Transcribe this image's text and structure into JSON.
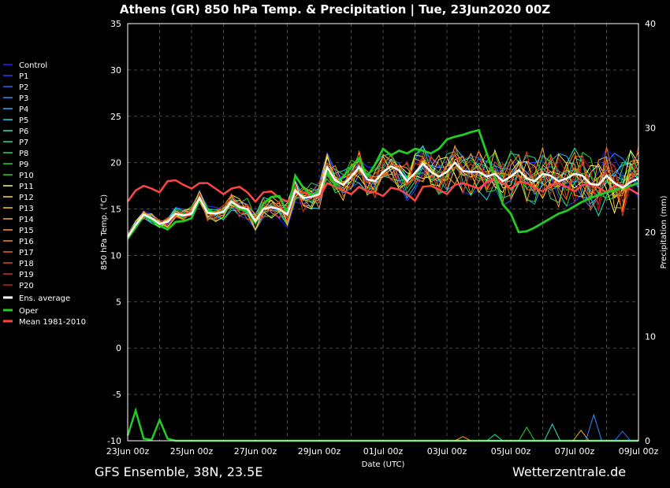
{
  "title": "Athens  (GR)  850 hPa Temp. & Precipitation | Tue, 23Jun2020 00Z",
  "footer": {
    "left": "GFS Ensemble, 38N, 23.5E",
    "right": "Wetterzentrale.de"
  },
  "chart_data": {
    "type": "line",
    "title": "Athens  (GR)  850 hPa Temp. & Precipitation | Tue, 23Jun2020 00Z",
    "xlabel": "Date (UTC)",
    "ylabel": "850 hPa Temp. (°C)",
    "y2label": "Precipitation (mm)",
    "x_ticks": [
      "23Jun 00z",
      "25Jun 00z",
      "27Jun 00z",
      "29Jun 00z",
      "01Jul 00z",
      "03Jul 00z",
      "05Jul 00z",
      "07Jul 00z",
      "09Jul 00z"
    ],
    "y_ticks": [
      "35",
      "30",
      "25",
      "20",
      "15",
      "10",
      "5",
      "0",
      "-5",
      "-10"
    ],
    "y2_ticks": [
      "40",
      "30",
      "20",
      "10",
      "0"
    ],
    "ylim": [
      -10,
      35
    ],
    "y2lim": [
      0,
      40
    ],
    "grid": true,
    "legend_position": "left",
    "legend": [
      {
        "name": "Control",
        "color": "#2222ff"
      },
      {
        "name": "P1",
        "color": "#2a3cff"
      },
      {
        "name": "P2",
        "color": "#2a66ff"
      },
      {
        "name": "P3",
        "color": "#2a90ff"
      },
      {
        "name": "P4",
        "color": "#22b4ff"
      },
      {
        "name": "P5",
        "color": "#22d4f0"
      },
      {
        "name": "P6",
        "color": "#22e8c0"
      },
      {
        "name": "P7",
        "color": "#22e090"
      },
      {
        "name": "P8",
        "color": "#22dc60"
      },
      {
        "name": "P9",
        "color": "#22d830"
      },
      {
        "name": "P10",
        "color": "#33d022"
      },
      {
        "name": "P11",
        "color": "#ffff66"
      },
      {
        "name": "P12",
        "color": "#ffdd33"
      },
      {
        "name": "P13",
        "color": "#ffc822"
      },
      {
        "name": "P14",
        "color": "#ffb022"
      },
      {
        "name": "P15",
        "color": "#ff9a22"
      },
      {
        "name": "P16",
        "color": "#ff8a22"
      },
      {
        "name": "P17",
        "color": "#ee6a22"
      },
      {
        "name": "P18",
        "color": "#dd4a22"
      },
      {
        "name": "P19",
        "color": "#cc3322"
      },
      {
        "name": "P20",
        "color": "#bb2222"
      },
      {
        "name": "Ens. average",
        "color": "#ffffff"
      },
      {
        "name": "Oper",
        "color": "#22cc22"
      },
      {
        "name": "Mean 1981-2010",
        "color": "#ff4444"
      }
    ],
    "x_days": [
      0,
      0.25,
      0.5,
      0.75,
      1,
      1.25,
      1.5,
      1.75,
      2,
      2.25,
      2.5,
      2.75,
      3,
      3.25,
      3.5,
      3.75,
      4,
      4.25,
      4.5,
      4.75,
      5,
      5.25,
      5.5,
      5.75,
      6,
      6.25,
      6.5,
      6.75,
      7,
      7.25,
      7.5,
      7.75,
      8,
      8.25,
      8.5,
      8.75,
      9,
      9.25,
      9.5,
      9.75,
      10,
      10.25,
      10.5,
      10.75,
      11,
      11.25,
      11.5,
      11.75,
      12,
      12.25,
      12.5,
      12.75,
      13,
      13.25,
      13.5,
      13.75,
      14,
      14.25,
      14.5,
      14.75,
      15,
      15.25,
      15.5,
      15.75,
      16
    ],
    "series": [
      {
        "name": "Ens. average",
        "values": [
          12.0,
          13.3,
          14.4,
          14.0,
          13.4,
          13.6,
          14.5,
          14.3,
          14.5,
          16.2,
          14.6,
          14.5,
          14.7,
          15.8,
          15.2,
          15.0,
          13.7,
          15.0,
          15.2,
          15.0,
          14.4,
          17.0,
          16.2,
          16.3,
          16.6,
          19.5,
          18.1,
          17.6,
          18.5,
          19.5,
          18.2,
          18.0,
          19.0,
          19.6,
          19.2,
          18.0,
          18.9,
          19.9,
          19.0,
          18.5,
          19.0,
          20.0,
          19.1,
          19.0,
          19.0,
          18.5,
          18.8,
          18.0,
          18.5,
          19.2,
          18.3,
          18.0,
          18.8,
          18.6,
          18.0,
          18.3,
          18.8,
          18.6,
          17.7,
          17.6,
          18.6,
          17.8,
          17.3,
          17.9,
          18.3
        ]
      },
      {
        "name": "Oper",
        "values": [
          11.8,
          13.0,
          14.3,
          13.8,
          13.2,
          12.8,
          13.6,
          13.7,
          14.0,
          16.0,
          14.8,
          14.6,
          14.6,
          15.8,
          15.0,
          14.8,
          13.5,
          15.6,
          16.3,
          16.4,
          14.5,
          18.6,
          17.3,
          16.5,
          16.8,
          19.0,
          17.5,
          18.5,
          19.5,
          20.5,
          18.5,
          19.8,
          21.5,
          20.8,
          21.3,
          21.0,
          21.5,
          21.3,
          21.0,
          21.5,
          22.5,
          22.8,
          23.0,
          23.3,
          23.5,
          21.0,
          18.5,
          15.5,
          14.5,
          12.5,
          12.6,
          13.0,
          13.5,
          14.0,
          14.5,
          14.8,
          15.3,
          15.8,
          16.2,
          16.5,
          16.8,
          17.0,
          17.3,
          17.5,
          17.8
        ]
      },
      {
        "name": "Mean 1981-2010",
        "values": [
          15.8,
          17.0,
          17.5,
          17.2,
          16.8,
          18.0,
          18.1,
          17.6,
          17.2,
          17.8,
          17.8,
          17.2,
          16.6,
          17.2,
          17.4,
          16.8,
          15.8,
          16.8,
          16.9,
          16.2,
          15.8,
          16.7,
          16.8,
          16.6,
          16.2,
          17.8,
          17.4,
          17.0,
          16.6,
          17.4,
          16.9,
          16.8,
          16.4,
          17.3,
          17.1,
          16.6,
          15.9,
          17.4,
          17.5,
          17.1,
          16.6,
          17.6,
          17.8,
          17.5,
          17.2,
          17.9,
          18.2,
          17.8,
          17.2,
          17.9,
          17.8,
          17.3,
          16.9,
          17.6,
          17.8,
          17.4,
          16.9,
          17.6,
          17.7,
          17.3,
          16.8,
          17.5,
          17.6,
          17.1,
          16.6
        ]
      }
    ],
    "precipitation_oper": {
      "x_days": [
        0,
        0.25,
        0.5,
        0.75,
        1,
        1.25,
        1.5,
        16
      ],
      "values": [
        0.5,
        2.9,
        0.2,
        0.1,
        2.0,
        0.2,
        0.0,
        0.0
      ]
    }
  }
}
